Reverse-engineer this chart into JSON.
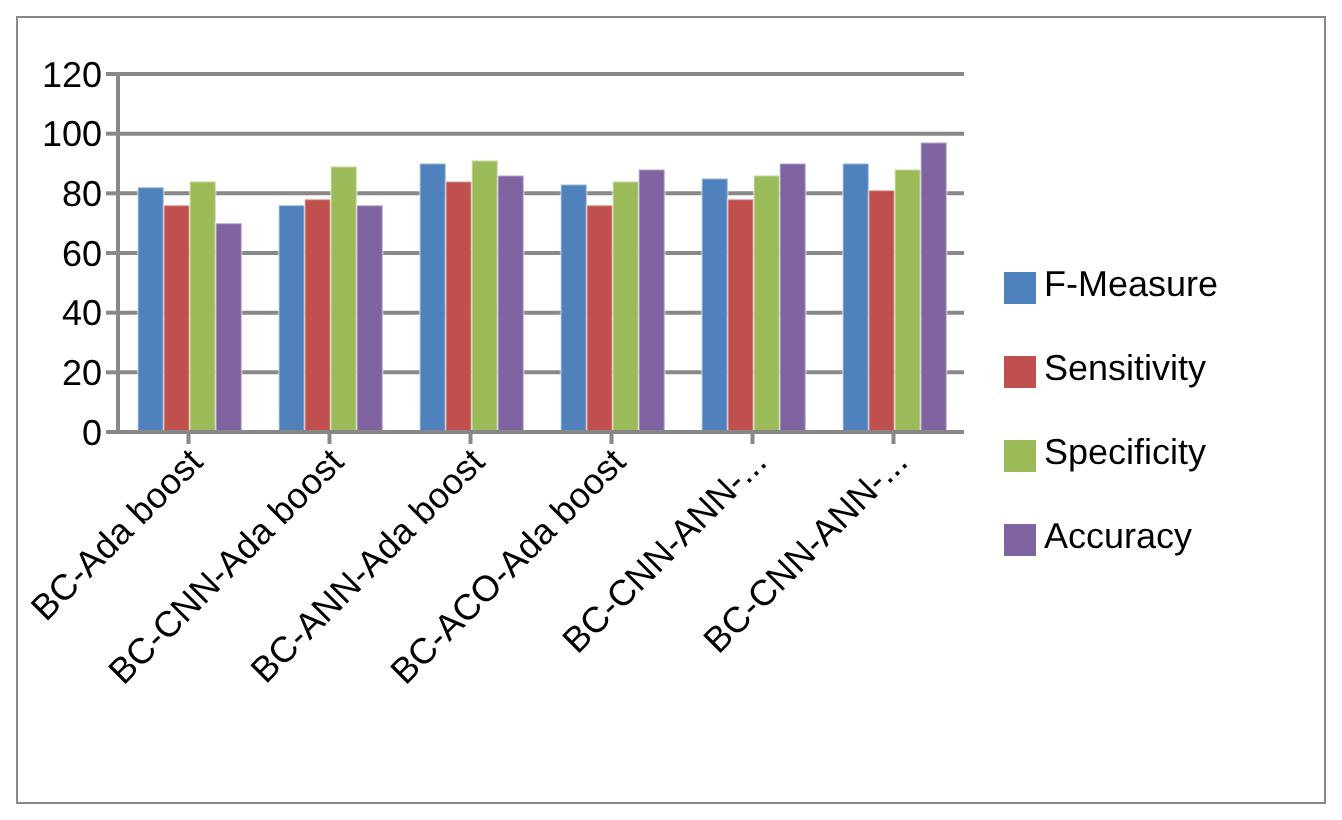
{
  "chart_data": {
    "type": "bar",
    "categories": [
      "BC-Ada boost",
      "BC-CNN-Ada boost",
      "BC-ANN-Ada boost",
      "BC-ACO-Ada boost",
      "BC-CNN-ANN-...",
      "BC-CNN-ANN-..."
    ],
    "series": [
      {
        "name": "F-Measure",
        "color": "#4f81bd",
        "values": [
          82,
          76,
          90,
          83,
          85,
          90
        ]
      },
      {
        "name": "Sensitivity",
        "color": "#c0504d",
        "values": [
          76,
          78,
          84,
          76,
          78,
          81
        ]
      },
      {
        "name": "Specificity",
        "color": "#9bbb59",
        "values": [
          84,
          89,
          91,
          84,
          86,
          88
        ]
      },
      {
        "name": "Accuracy",
        "color": "#8064a2",
        "values": [
          70,
          76,
          86,
          88,
          90,
          97
        ]
      }
    ],
    "ylim": [
      0,
      120
    ],
    "yticks": [
      0,
      20,
      40,
      60,
      80,
      100,
      120
    ],
    "grid": "y",
    "legend": "right"
  }
}
